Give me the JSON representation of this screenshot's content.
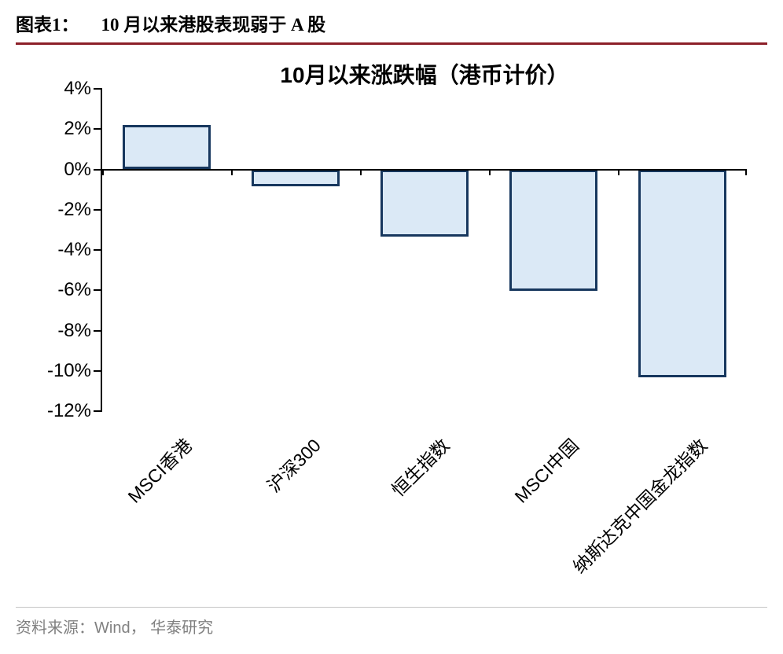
{
  "header": {
    "label": "图表1：",
    "title": "10 月以来港股表现弱于 A 股"
  },
  "chart_data": {
    "type": "bar",
    "title": "10月以来涨跌幅（港币计价）",
    "categories": [
      "MSCI香港",
      "沪深300",
      "恒生指数",
      "MSCI中国",
      "纳斯达克中国金龙指数"
    ],
    "values": [
      2.2,
      -0.8,
      -3.3,
      -6.0,
      -10.3
    ],
    "unit": "%",
    "ylim": [
      -12,
      4
    ],
    "ytick_step": 2,
    "ytick_labels": [
      "4%",
      "2%",
      "0%",
      "-2%",
      "-4%",
      "-6%",
      "-8%",
      "-10%",
      "-12%"
    ],
    "xlabel": "",
    "ylabel": "",
    "grid": false,
    "legend": false,
    "bar_fill": "#dbe9f6",
    "bar_border": "#17375e"
  },
  "footer": {
    "source": "资料来源：Wind， 华泰研究"
  },
  "colors": {
    "header_rule": "#8c1f28",
    "axis": "#000000",
    "source_text": "#808080"
  }
}
